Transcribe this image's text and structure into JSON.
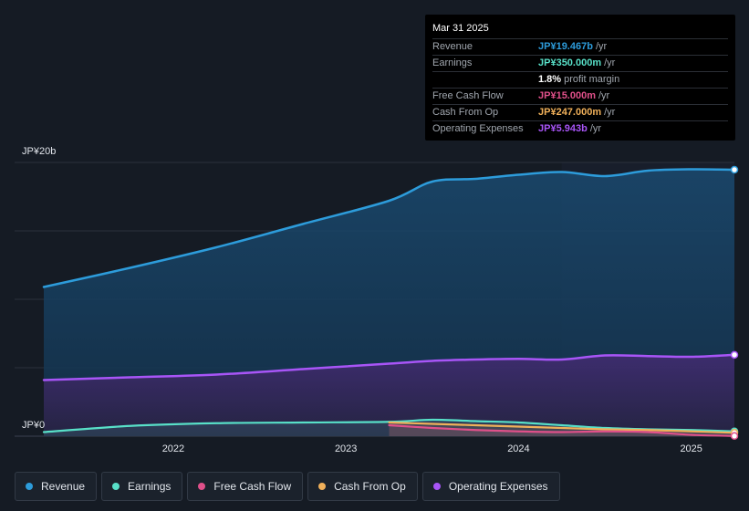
{
  "tooltip": {
    "date": "Mar 31 2025",
    "rows": [
      {
        "label": "Revenue",
        "value": "JP¥19.467b",
        "unit": "/yr",
        "color": "#2d9cdb"
      },
      {
        "label": "Earnings",
        "value": "JP¥350.000m",
        "unit": "/yr",
        "color": "#58e0c8"
      },
      {
        "label": "",
        "value": "1.8%",
        "unit": "profit margin",
        "color": "#ffffff"
      },
      {
        "label": "Free Cash Flow",
        "value": "JP¥15.000m",
        "unit": "/yr",
        "color": "#e0508a"
      },
      {
        "label": "Cash From Op",
        "value": "JP¥247.000m",
        "unit": "/yr",
        "color": "#f0b05a"
      },
      {
        "label": "Operating Expenses",
        "value": "JP¥5.943b",
        "unit": "/yr",
        "color": "#a855f7"
      }
    ]
  },
  "legend": [
    {
      "label": "Revenue",
      "color": "#2d9cdb"
    },
    {
      "label": "Earnings",
      "color": "#58e0c8"
    },
    {
      "label": "Free Cash Flow",
      "color": "#e0508a"
    },
    {
      "label": "Cash From Op",
      "color": "#f0b05a"
    },
    {
      "label": "Operating Expenses",
      "color": "#a855f7"
    }
  ],
  "chart_data": {
    "type": "area",
    "ylabel_top": "JP¥20b",
    "ylabel_bottom": "JP¥0",
    "ylim": [
      0,
      20
    ],
    "xlim": [
      2021.2,
      2025.25
    ],
    "x_ticks": [
      2022,
      2023,
      2024,
      2025
    ],
    "x_tick_labels": [
      "2022",
      "2023",
      "2024",
      "2025"
    ],
    "highlight_start": 2024.25,
    "series": [
      {
        "name": "Revenue",
        "color": "#2d9cdb",
        "fill": true,
        "x": [
          2021.25,
          2021.75,
          2022.25,
          2022.75,
          2023.25,
          2023.5,
          2023.75,
          2024.0,
          2024.25,
          2024.5,
          2024.75,
          2025.0,
          2025.25
        ],
        "y": [
          10.9,
          12.3,
          13.8,
          15.5,
          17.2,
          18.6,
          18.8,
          19.1,
          19.3,
          19.0,
          19.4,
          19.5,
          19.467
        ]
      },
      {
        "name": "Operating Expenses",
        "color": "#a855f7",
        "fill": true,
        "x": [
          2021.25,
          2021.75,
          2022.25,
          2022.75,
          2023.25,
          2023.5,
          2023.75,
          2024.0,
          2024.25,
          2024.5,
          2024.75,
          2025.0,
          2025.25
        ],
        "y": [
          4.1,
          4.3,
          4.5,
          4.9,
          5.3,
          5.5,
          5.6,
          5.65,
          5.6,
          5.9,
          5.85,
          5.8,
          5.943
        ]
      },
      {
        "name": "Earnings",
        "color": "#58e0c8",
        "fill": false,
        "x": [
          2021.25,
          2021.75,
          2022.25,
          2022.75,
          2023.25,
          2023.5,
          2023.75,
          2024.0,
          2024.25,
          2024.5,
          2024.75,
          2025.0,
          2025.25
        ],
        "y": [
          0.3,
          0.75,
          0.95,
          1.0,
          1.05,
          1.2,
          1.1,
          1.0,
          0.8,
          0.6,
          0.5,
          0.45,
          0.35
        ]
      },
      {
        "name": "Cash From Op",
        "color": "#f0b05a",
        "fill": false,
        "x": [
          2023.25,
          2023.5,
          2023.75,
          2024.0,
          2024.25,
          2024.5,
          2024.75,
          2025.0,
          2025.25
        ],
        "y": [
          1.0,
          0.9,
          0.8,
          0.7,
          0.6,
          0.5,
          0.45,
          0.35,
          0.247
        ]
      },
      {
        "name": "Free Cash Flow",
        "color": "#e0508a",
        "fill": false,
        "x": [
          2023.25,
          2023.5,
          2023.75,
          2024.0,
          2024.25,
          2024.5,
          2024.75,
          2025.0,
          2025.25
        ],
        "y": [
          0.8,
          0.6,
          0.45,
          0.35,
          0.3,
          0.35,
          0.3,
          0.1,
          0.015
        ]
      }
    ]
  }
}
